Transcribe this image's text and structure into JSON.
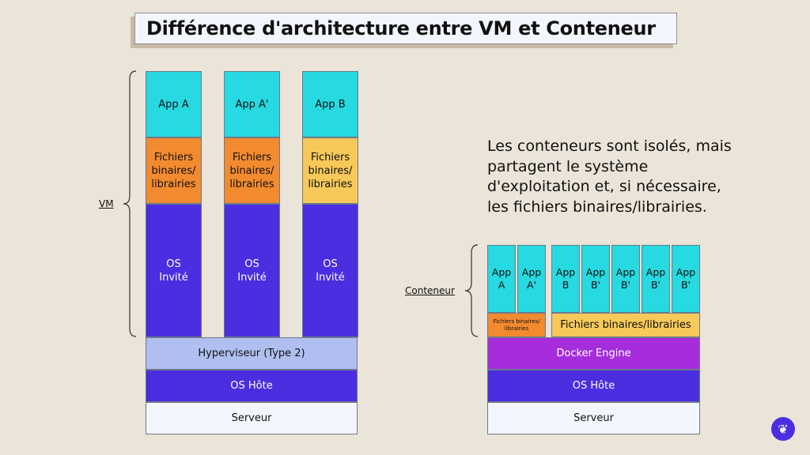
{
  "title": "Différence d'architecture entre VM et Conteneur",
  "vm": {
    "label": "VM",
    "columns": [
      {
        "app": "App A",
        "libs": "Fichiers binaires/ librairies",
        "libs_color": "#f28a30",
        "os": "OS Invité"
      },
      {
        "app": "App A'",
        "libs": "Fichiers binaires/ librairies",
        "libs_color": "#f28a30",
        "os": "OS Invité"
      },
      {
        "app": "App B",
        "libs": "Fichiers binaires/ librairies",
        "libs_color": "#f7c85a",
        "os": "OS Invité"
      }
    ],
    "hypervisor": "Hyperviseur (Type 2)",
    "host_os": "OS Hôte",
    "server": "Serveur"
  },
  "container": {
    "label": "Conteneur",
    "apps": [
      "App A",
      "App A'",
      "App B",
      "App B'",
      "App B'",
      "App B'",
      "App B'"
    ],
    "libs_small": "Fichiers binaires/ librairies",
    "libs_large": "Fichiers binaires/librairies",
    "engine": "Docker Engine",
    "host_os": "OS Hôte",
    "server": "Serveur"
  },
  "note": "Les conteneurs sont isolés, mais partagent le système d'exploitation et, si nécessaire, les fichiers binaires/librairies.",
  "colors": {
    "background": "#ebe4d8",
    "app": "#27d9e0",
    "os": "#4a2ee0",
    "hypervisor": "#b0bff0",
    "docker": "#a52ddc",
    "logo": "#4a2ee0"
  },
  "logo": "griffin-logo"
}
